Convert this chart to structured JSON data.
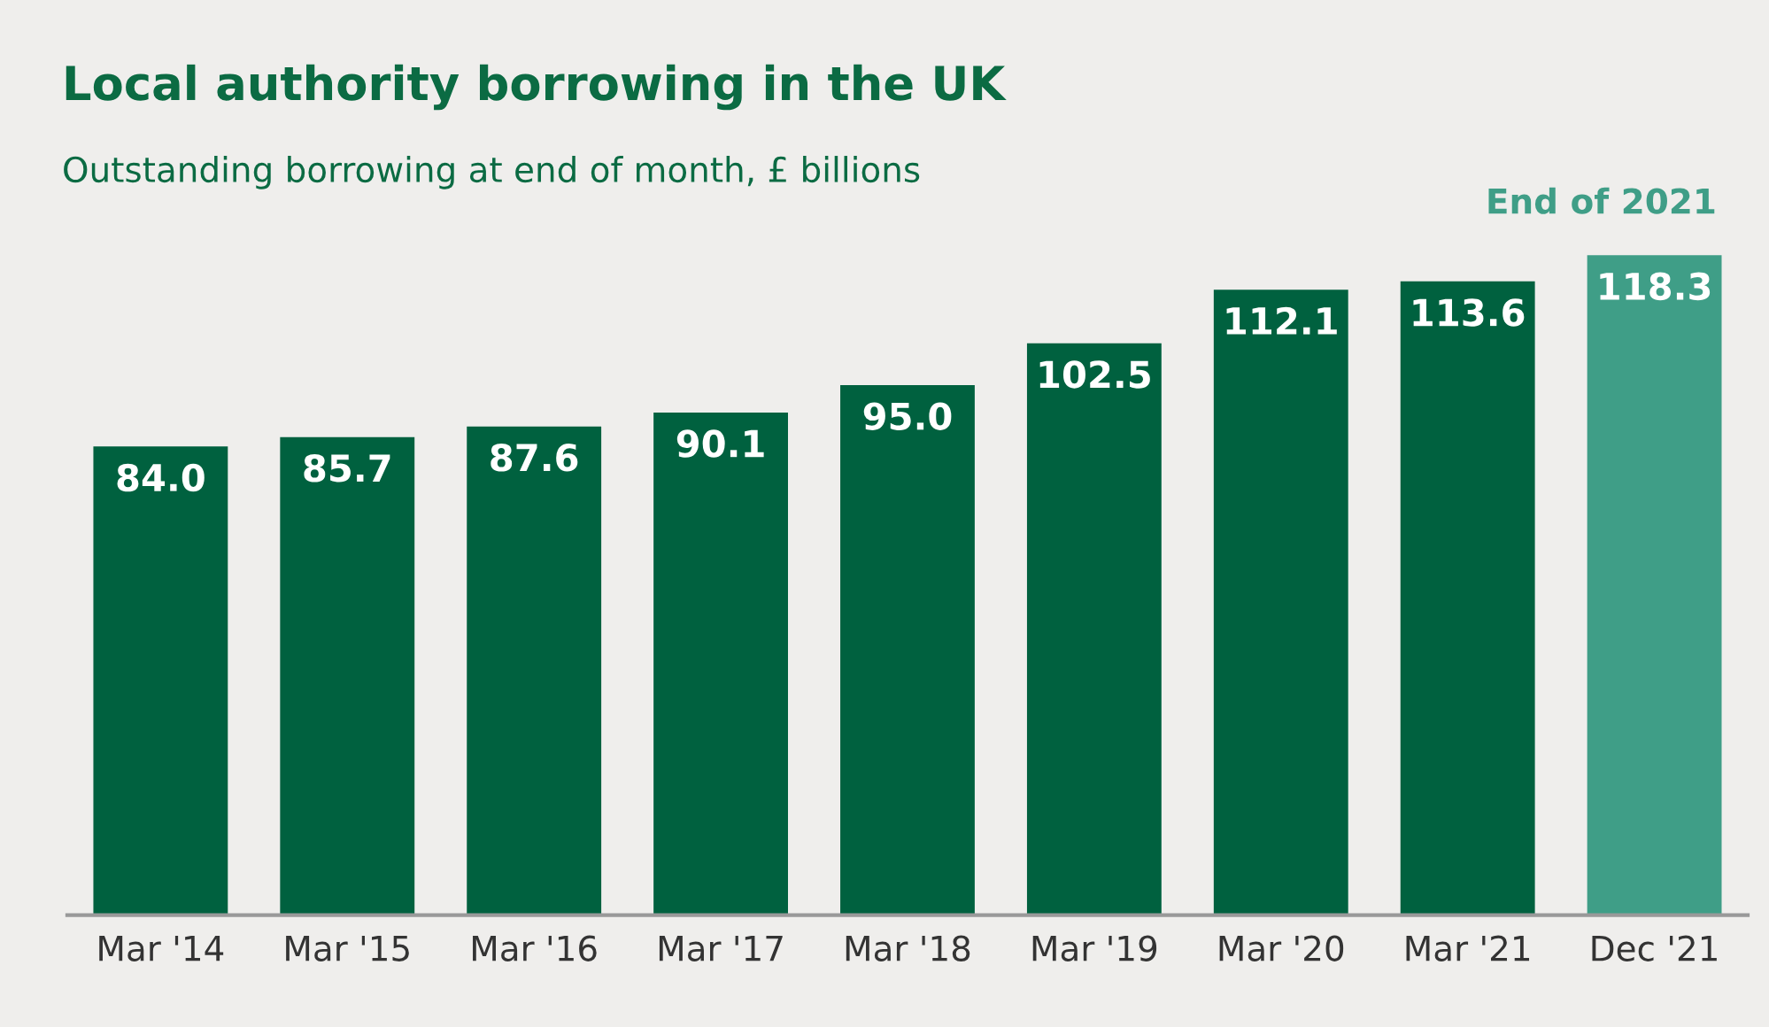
{
  "chart_data": {
    "type": "bar",
    "title": "Local authority borrowing in the UK",
    "subtitle": "Outstanding borrowing at end of month, £ billions",
    "categories": [
      "Mar '14",
      "Mar '15",
      "Mar '16",
      "Mar '17",
      "Mar '18",
      "Mar '19",
      "Mar '20",
      "Mar '21",
      "Dec '21"
    ],
    "values": [
      84.0,
      85.7,
      87.6,
      90.1,
      95.0,
      102.5,
      112.1,
      113.6,
      118.3
    ],
    "colors": [
      "#00613f",
      "#00613f",
      "#00613f",
      "#00613f",
      "#00613f",
      "#00613f",
      "#00613f",
      "#00613f",
      "#3f9e87"
    ],
    "value_labels": [
      "84.0",
      "85.7",
      "87.6",
      "90.1",
      "95.0",
      "102.5",
      "112.1",
      "113.6",
      "118.3"
    ],
    "annotations": [
      {
        "text": "End of 2021",
        "x": "Dec '21",
        "y": 118.3
      }
    ],
    "grid": false,
    "legend": false
  }
}
